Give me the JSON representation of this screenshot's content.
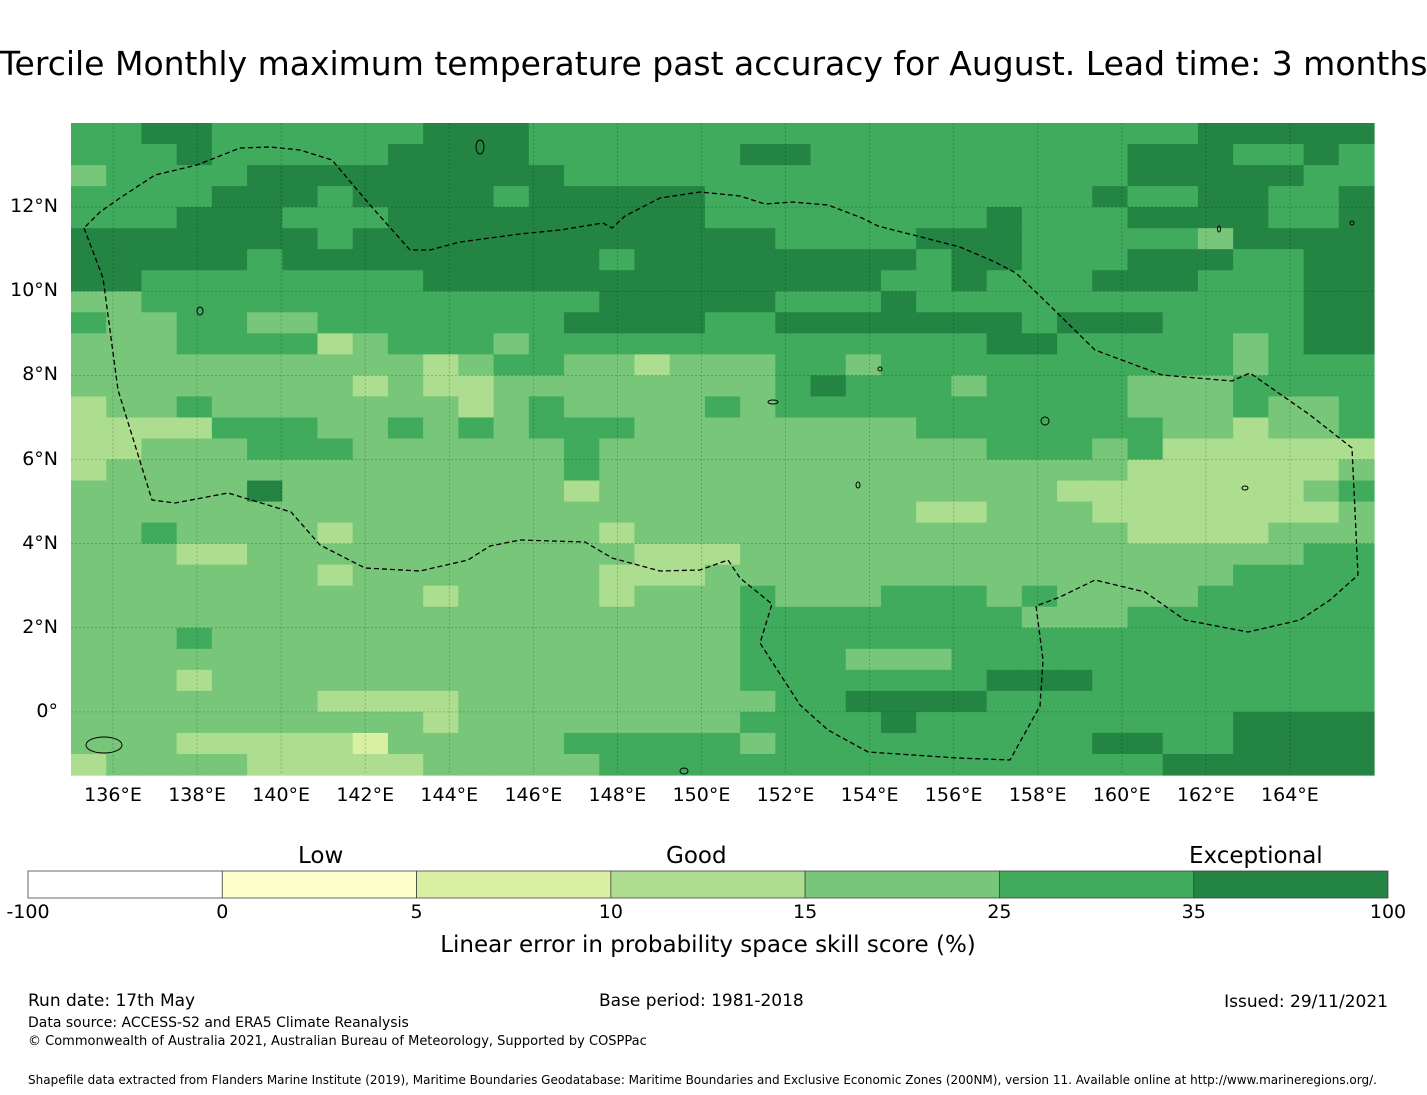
{
  "title": "Tercile Monthly maximum temperature past accuracy for August. Lead time: 3 months",
  "map": {
    "lon_range": [
      135,
      166
    ],
    "lat_range": [
      -1.5,
      14
    ],
    "lon_ticks": [
      "136°E",
      "138°E",
      "140°E",
      "142°E",
      "144°E",
      "146°E",
      "148°E",
      "150°E",
      "152°E",
      "154°E",
      "156°E",
      "158°E",
      "160°E",
      "162°E",
      "164°E"
    ],
    "lat_ticks": [
      "12°N",
      "10°N",
      "8°N",
      "6°N",
      "4°N",
      "2°N",
      "0°"
    ],
    "cell_size_deg": 0.833,
    "grid_lines": true,
    "boundary": "dashed EEZ outline (Federated States of Micronesia)"
  },
  "colorbar": {
    "category_labels": [
      "Low",
      "Good",
      "Exceptional"
    ],
    "ticks": [
      "-100",
      "0",
      "5",
      "10",
      "15",
      "25",
      "35",
      "100"
    ],
    "colors": [
      "#ffffff",
      "#ffffcc",
      "#d9f0a3",
      "#addd8e",
      "#78c679",
      "#41ab5d",
      "#238443"
    ],
    "axis_label": "Linear error in probability space skill score (%)"
  },
  "footer": {
    "run_date": "Run date: 17th May",
    "base_period": "Base period: 1981-2018",
    "issued": "Issued: 29/11/2021",
    "data_source": "Data source: ACCESS-S2 and ERA5 Climate Reanalysis",
    "copyright": "© Commonwealth of Australia 2021, Australian Bureau of Meteorology, Supported by COSPPac",
    "shapefile": "Shapefile data extracted from Flanders Marine Institute (2019), Maritime Boundaries Geodatabase: Maritime Boundaries and Exclusive Economic Zones (200NM), version 11. Available online at http://www.marineregions.org/."
  }
}
